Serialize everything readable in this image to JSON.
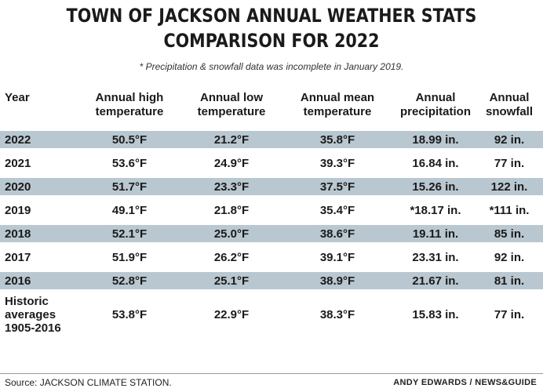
{
  "title_line1": "TOWN OF JACKSON ANNUAL WEATHER STATS",
  "title_line2": "COMPARISON FOR 2022",
  "note": "* Precipitation & snowfall data was incomplete in January 2019.",
  "colors": {
    "shade": "#b9c7d0",
    "text": "#1a1a1a"
  },
  "chart_data": {
    "type": "table",
    "columns": [
      "Year",
      "Annual high temperature",
      "Annual low temperature",
      "Annual mean temperature",
      "Annual precipitation",
      "Annual snowfall"
    ],
    "rows": [
      [
        "2022",
        "50.5°F",
        "21.2°F",
        "35.8°F",
        "18.99 in.",
        "92 in."
      ],
      [
        "2021",
        "53.6°F",
        "24.9°F",
        "39.3°F",
        "16.84 in.",
        "77 in."
      ],
      [
        "2020",
        "51.7°F",
        "23.3°F",
        "37.5°F",
        "15.26 in.",
        "122 in."
      ],
      [
        "2019",
        "49.1°F",
        "21.8°F",
        "35.4°F",
        "*18.17 in.",
        "*111 in."
      ],
      [
        "2018",
        "52.1°F",
        "25.0°F",
        "38.6°F",
        "19.11 in.",
        "85 in."
      ],
      [
        "2017",
        "51.9°F",
        "26.2°F",
        "39.1°F",
        "23.31 in.",
        "92 in."
      ],
      [
        "2016",
        "52.8°F",
        "25.1°F",
        "38.9°F",
        "21.67 in.",
        "81 in."
      ],
      [
        "Historic averages 1905-2016",
        "53.8°F",
        "22.9°F",
        "38.3°F",
        "15.83 in.",
        "77 in."
      ]
    ]
  },
  "source": "Source: JACKSON CLIMATE STATION.",
  "credit": "ANDY EDWARDS / NEWS&GUIDE"
}
